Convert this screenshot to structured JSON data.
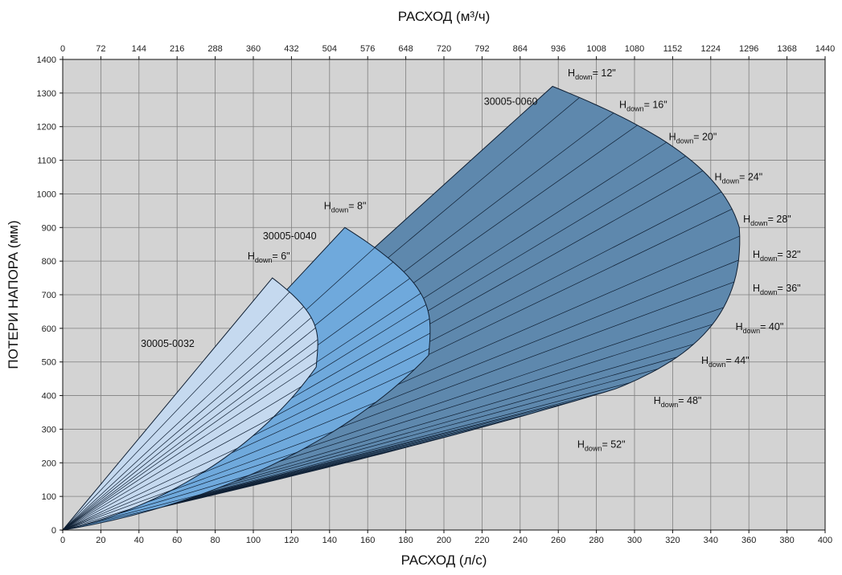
{
  "chart_data": {
    "type": "area",
    "title": "",
    "xlabel_bottom": "РАСХОД (л/с)",
    "xlabel_top": "РАСХОД (м³/ч)",
    "ylabel": "ПОТЕРИ НАПОРА (мм)",
    "xlim": [
      0,
      400
    ],
    "ylim": [
      0,
      1400
    ],
    "x_ticks": [
      0,
      20,
      40,
      60,
      80,
      100,
      120,
      140,
      160,
      180,
      200,
      220,
      240,
      260,
      280,
      300,
      320,
      340,
      360,
      380,
      400
    ],
    "x_top_ticks": [
      "0",
      "72",
      "144",
      "216",
      "288",
      "360",
      "432",
      "504",
      "576",
      "648",
      "720",
      "792",
      "864",
      "936",
      "1008",
      "1080",
      "1152",
      "1224",
      "1296",
      "1368",
      "1440"
    ],
    "y_ticks": [
      0,
      100,
      200,
      300,
      400,
      500,
      600,
      700,
      800,
      900,
      1000,
      1100,
      1200,
      1300,
      1400
    ],
    "grid": true,
    "colors": {
      "plot_background": "#d3d3d3",
      "grid": "#7f7f7f",
      "series_0032": "#c5d9ef",
      "series_0040": "#6fa9dc",
      "series_0060": "#5e88ad",
      "edge": "#0e1e32"
    },
    "series": [
      {
        "name": "30005-0032",
        "label_pos": [
          41,
          545
        ],
        "tip": [
          110,
          750
        ],
        "nose": [
          133,
          485
        ],
        "base_slope": 1.75,
        "bulge": 60,
        "fan_lines": 14
      },
      {
        "name": "30005-0040",
        "label_pos": [
          105,
          865
        ],
        "tip": [
          148,
          900
        ],
        "nose": [
          192,
          520
        ],
        "base_slope": 1.3,
        "bulge": 95,
        "fan_lines": 16
      },
      {
        "name": "30005-0060",
        "label_pos": [
          221,
          1265
        ],
        "tip": [
          257,
          1320
        ],
        "nose": [
          355,
          800
        ],
        "base_slope": 0.0019,
        "bulge": 0,
        "fan_lines": 28
      }
    ],
    "annotations": [
      {
        "main": "H",
        "sub": "down",
        "rest": "= 6\"",
        "pos": [
          97,
          805
        ]
      },
      {
        "main": "H",
        "sub": "down",
        "rest": "= 8\"",
        "pos": [
          137,
          955
        ]
      },
      {
        "main": "H",
        "sub": "down",
        "rest": "= 12\"",
        "pos": [
          265,
          1350
        ]
      },
      {
        "main": "H",
        "sub": "down",
        "rest": "= 16\"",
        "pos": [
          292,
          1255
        ]
      },
      {
        "main": "H",
        "sub": "down",
        "rest": "= 20\"",
        "pos": [
          318,
          1160
        ]
      },
      {
        "main": "H",
        "sub": "down",
        "rest": "= 24\"",
        "pos": [
          342,
          1040
        ]
      },
      {
        "main": "H",
        "sub": "down",
        "rest": "= 28\"",
        "pos": [
          357,
          915
        ]
      },
      {
        "main": "H",
        "sub": "down",
        "rest": "= 32\"",
        "pos": [
          362,
          810
        ]
      },
      {
        "main": "H",
        "sub": "down",
        "rest": "= 36\"",
        "pos": [
          362,
          710
        ]
      },
      {
        "main": "H",
        "sub": "down",
        "rest": "= 40\"",
        "pos": [
          353,
          595
        ]
      },
      {
        "main": "H",
        "sub": "down",
        "rest": "= 44\"",
        "pos": [
          335,
          495
        ]
      },
      {
        "main": "H",
        "sub": "down",
        "rest": "= 48\"",
        "pos": [
          310,
          375
        ]
      },
      {
        "main": "H",
        "sub": "down",
        "rest": "= 52\"",
        "pos": [
          270,
          245
        ]
      }
    ]
  }
}
